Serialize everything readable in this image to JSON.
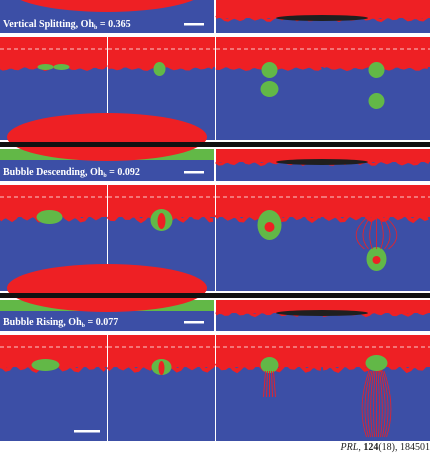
{
  "figure": {
    "colors": {
      "liquid": "#3c4fa6",
      "gas": "#ee2024",
      "bubble": "#62b847",
      "dark_edge": "#1f1f1f",
      "divider": "#ffffff"
    },
    "rows": [
      {
        "id": "vertical-splitting",
        "label_prefix": "Vertical Splitting, Oh",
        "label_sub": "b",
        "label_value": " = 0.365",
        "frames": 4
      },
      {
        "id": "bubble-descending",
        "label_prefix": "Bubble Descending, Oh",
        "label_sub": "b",
        "label_value": " = 0.092",
        "frames": 4
      },
      {
        "id": "bubble-rising",
        "label_prefix": "Bubble Rising, Oh",
        "label_sub": "b",
        "label_value": " = 0.077",
        "frames": 4
      }
    ]
  },
  "citation": {
    "journal": "PRL",
    "volume": "124",
    "issue_and_page": "(18), 184501"
  }
}
